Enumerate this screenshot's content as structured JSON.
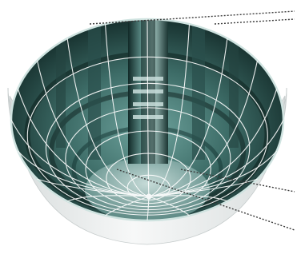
{
  "figure": {
    "background": "#ffffff",
    "colors": {
      "interior_dark": "#0f2523",
      "interior_mid": "#3f6f6a",
      "interior_light": "#7fb3ad",
      "rim_light": "#cfe3e0",
      "outer_shell": "#e6e9e9",
      "grid": "#ffffff",
      "leader": "#3a3a3a"
    },
    "icons": [
      "hemisphere-bowl",
      "column-structure"
    ]
  }
}
